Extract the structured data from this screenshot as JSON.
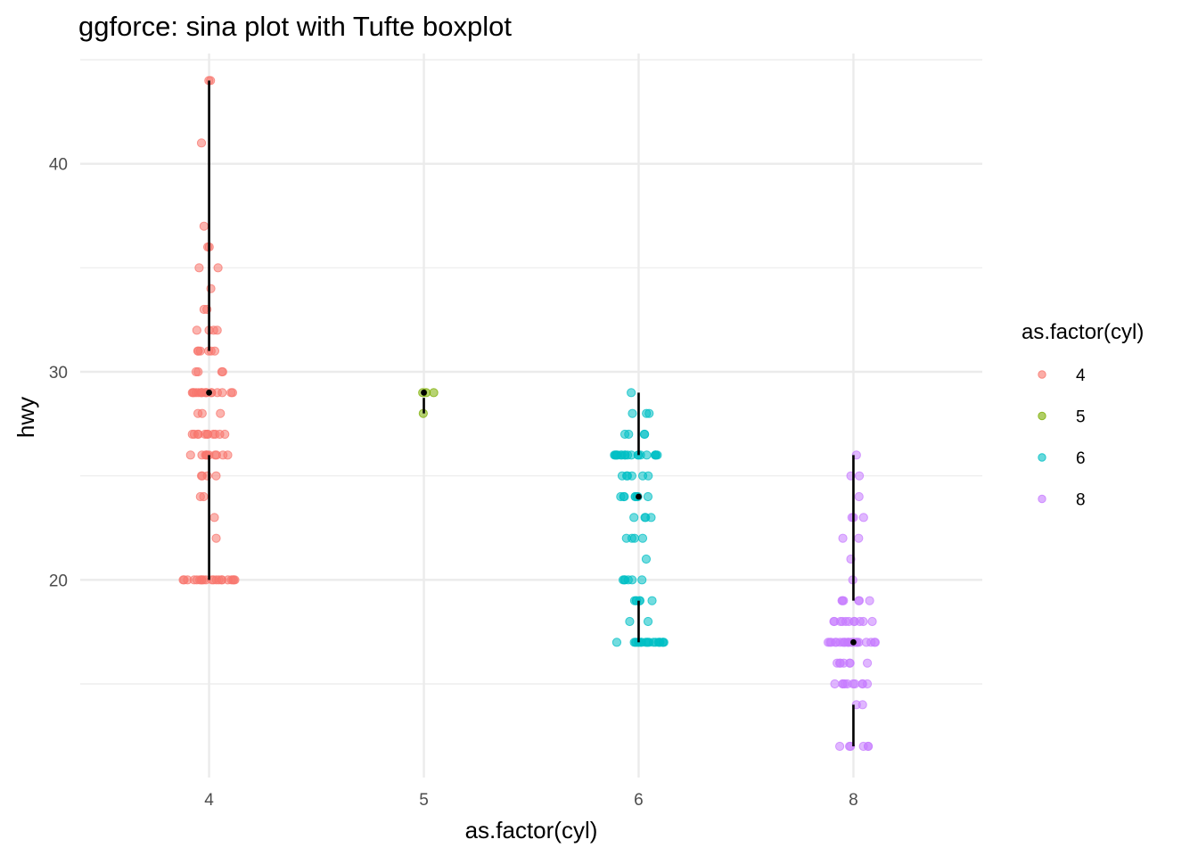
{
  "chart_data": {
    "type": "scatter",
    "subtype": "sina plot with Tufte boxplot",
    "title": "ggforce: sina plot with Tufte boxplot",
    "xlabel": "as.factor(cyl)",
    "ylabel": "hwy",
    "categories": [
      "4",
      "5",
      "6",
      "8"
    ],
    "ylim": [
      10.5,
      45.3
    ],
    "y_ticks": [
      20,
      30,
      40
    ],
    "y_minor_ticks": [
      15,
      25,
      35,
      45
    ],
    "grid": true,
    "legend": {
      "title": "as.factor(cyl)",
      "placement": "right",
      "entries": [
        "4",
        "5",
        "6",
        "8"
      ]
    },
    "colors": {
      "4": "#F8766D",
      "5": "#7CAE00",
      "6": "#00BFC4",
      "8": "#C77CFF",
      "boxplot": "#000000",
      "grid": "#EBEBEB"
    },
    "series": [
      {
        "name": "4",
        "y_values": [
          44,
          44,
          41,
          37,
          36,
          36,
          35,
          35,
          34,
          33,
          33,
          32,
          32,
          32,
          32,
          31,
          31,
          31,
          31,
          31,
          31,
          30,
          30,
          30,
          30,
          29,
          29,
          29,
          29,
          29,
          29,
          29,
          29,
          29,
          29,
          29,
          29,
          29,
          29,
          29,
          29,
          29,
          28,
          28,
          28,
          27,
          27,
          27,
          27,
          27,
          27,
          27,
          27,
          27,
          27,
          27,
          26,
          26,
          26,
          26,
          26,
          26,
          26,
          26,
          26,
          26,
          26,
          25,
          25,
          25,
          25,
          24,
          24,
          23,
          22,
          20,
          20,
          20,
          20,
          20,
          20,
          20,
          20,
          20,
          20,
          20,
          20,
          20,
          20,
          20,
          20,
          20,
          20,
          20,
          20,
          20
        ],
        "boxplot": {
          "min": 20,
          "q1": 26,
          "median": 29,
          "q3": 31,
          "max": 44
        }
      },
      {
        "name": "5",
        "y_values": [
          29,
          29,
          29,
          28
        ],
        "boxplot": {
          "min": 28,
          "q1": 28.75,
          "median": 29,
          "q3": 29,
          "max": 29
        }
      },
      {
        "name": "6",
        "y_values": [
          29,
          28,
          28,
          28,
          27,
          27,
          27,
          27,
          26,
          26,
          26,
          26,
          26,
          26,
          26,
          26,
          26,
          26,
          26,
          26,
          26,
          26,
          26,
          26,
          26,
          26,
          26,
          25,
          25,
          25,
          25,
          25,
          25,
          24,
          24,
          24,
          24,
          24,
          24,
          24,
          24,
          23,
          23,
          23,
          23,
          22,
          22,
          22,
          22,
          21,
          20,
          20,
          20,
          20,
          20,
          20,
          19,
          19,
          19,
          19,
          19,
          19,
          18,
          18,
          17,
          17,
          17,
          17,
          17,
          17,
          17,
          17,
          17,
          17,
          17,
          17,
          17,
          17,
          17,
          17,
          17,
          17,
          17,
          17
        ],
        "boxplot": {
          "min": 17,
          "q1": 19,
          "median": 24,
          "q3": 26,
          "max": 29
        }
      },
      {
        "name": "8",
        "y_values": [
          26,
          25,
          25,
          24,
          23,
          23,
          23,
          22,
          22,
          21,
          20,
          19,
          19,
          19,
          19,
          19,
          19,
          18,
          18,
          18,
          18,
          18,
          18,
          18,
          18,
          18,
          18,
          18,
          17,
          17,
          17,
          17,
          17,
          17,
          17,
          17,
          17,
          17,
          17,
          17,
          17,
          17,
          17,
          17,
          17,
          17,
          17,
          17,
          17,
          17,
          16,
          16,
          16,
          16,
          16,
          16,
          16,
          15,
          15,
          15,
          15,
          15,
          15,
          15,
          15,
          15,
          15,
          14,
          14,
          12,
          12,
          12,
          12,
          12,
          12
        ],
        "boxplot": {
          "min": 12,
          "q1": 14,
          "median": 17,
          "q3": 19,
          "max": 26
        }
      }
    ]
  }
}
